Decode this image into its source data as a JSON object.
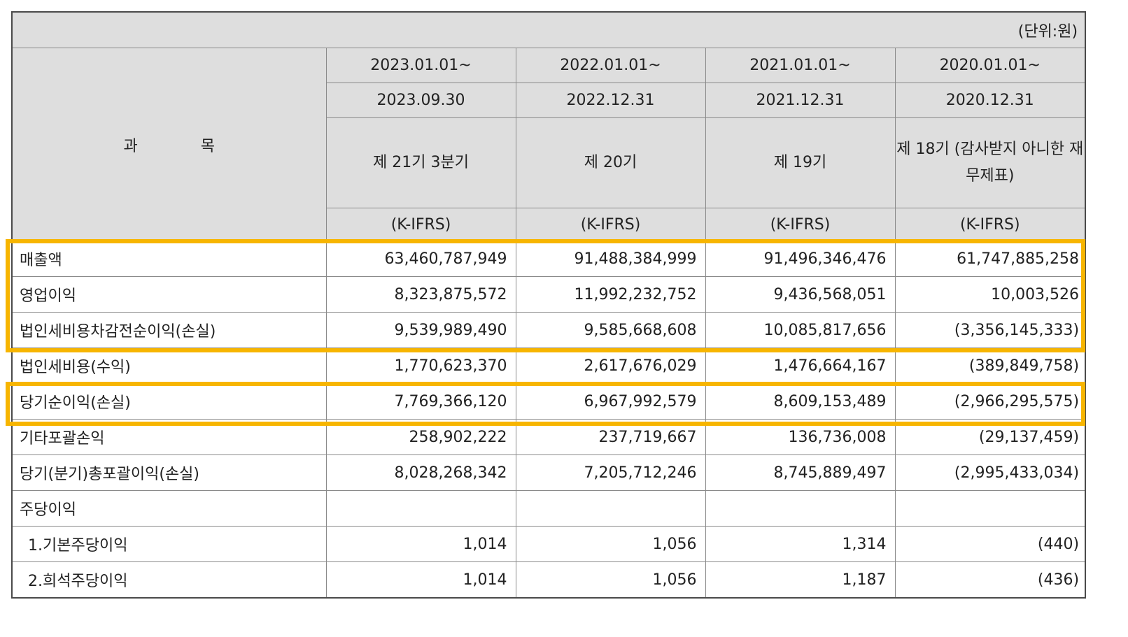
{
  "unit_label": "(단위:원)",
  "subject_header": [
    "과",
    "목"
  ],
  "columns": [
    {
      "period_start": "2023.01.01~",
      "period_end": "2023.09.30",
      "term": "제 21기 3분기",
      "standard": "(K-IFRS)"
    },
    {
      "period_start": "2022.01.01~",
      "period_end": "2022.12.31",
      "term": "제 20기",
      "standard": "(K-IFRS)"
    },
    {
      "period_start": "2021.01.01~",
      "period_end": "2021.12.31",
      "term": "제 19기",
      "standard": "(K-IFRS)"
    },
    {
      "period_start": "2020.01.01~",
      "period_end": "2020.12.31",
      "term": "제 18기\n(감사받지 아니한\n재무제표)",
      "standard": "(K-IFRS)"
    }
  ],
  "rows": [
    {
      "label": "매출액",
      "values": [
        "63,460,787,949",
        "91,488,384,999",
        "91,496,346,476",
        "61,747,885,258"
      ]
    },
    {
      "label": "영업이익",
      "values": [
        "8,323,875,572",
        "11,992,232,752",
        "9,436,568,051",
        "10,003,526"
      ]
    },
    {
      "label": "법인세비용차감전순이익(손실)",
      "values": [
        "9,539,989,490",
        "9,585,668,608",
        "10,085,817,656",
        "(3,356,145,333)"
      ]
    },
    {
      "label": "법인세비용(수익)",
      "values": [
        "1,770,623,370",
        "2,617,676,029",
        "1,476,664,167",
        "(389,849,758)"
      ]
    },
    {
      "label": "당기순이익(손실)",
      "values": [
        "7,769,366,120",
        "6,967,992,579",
        "8,609,153,489",
        "(2,966,295,575)"
      ]
    },
    {
      "label": "기타포괄손익",
      "values": [
        "258,902,222",
        "237,719,667",
        "136,736,008",
        "(29,137,459)"
      ]
    },
    {
      "label": "당기(분기)총포괄이익(손실)",
      "values": [
        "8,028,268,342",
        "7,205,712,246",
        "8,745,889,497",
        "(2,995,433,034)"
      ]
    },
    {
      "label": "주당이익",
      "values": [
        "",
        "",
        "",
        ""
      ]
    },
    {
      "label": "1.기본주당이익",
      "values": [
        "1,014",
        "1,056",
        "1,314",
        "(440)"
      ]
    },
    {
      "label": "2.희석주당이익",
      "values": [
        "1,014",
        "1,056",
        "1,187",
        "(436)"
      ]
    }
  ],
  "highlight_color": "#f7b500"
}
